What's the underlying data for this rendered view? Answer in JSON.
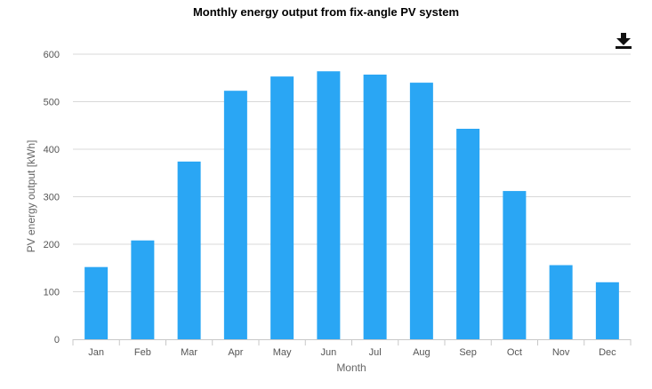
{
  "chart_data": {
    "type": "bar",
    "title": "Monthly energy output from fix-angle PV system",
    "xlabel": "Month",
    "ylabel": "PV energy output [kWh]",
    "categories": [
      "Jan",
      "Feb",
      "Mar",
      "Apr",
      "May",
      "Jun",
      "Jul",
      "Aug",
      "Sep",
      "Oct",
      "Nov",
      "Dec"
    ],
    "values": [
      152,
      208,
      374,
      523,
      553,
      564,
      557,
      540,
      443,
      312,
      156,
      120
    ],
    "ylim": [
      0,
      600
    ],
    "yticks": [
      "0",
      "100",
      "200",
      "300",
      "400",
      "500",
      "600"
    ],
    "grid": true,
    "bar_color": "#2aa6f4",
    "legend": "none"
  },
  "toolbar": {
    "download_icon": "download-icon"
  }
}
